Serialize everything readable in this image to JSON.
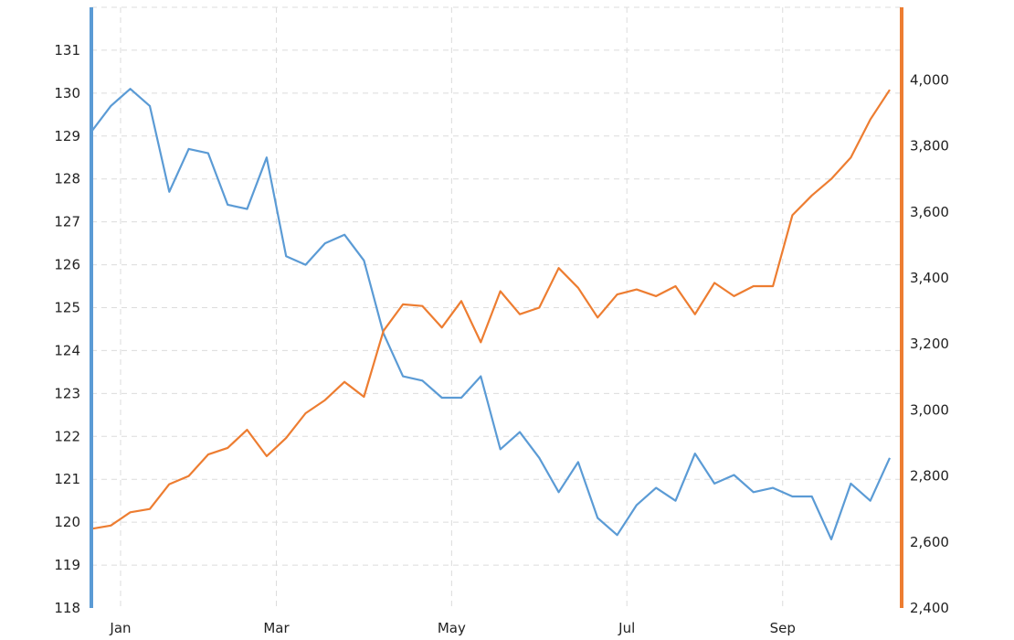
{
  "chart_data": {
    "type": "line",
    "title": "",
    "xlabel": "",
    "x_tick_labels": [
      "Jan",
      "Mar",
      "May",
      "Jul",
      "Sep"
    ],
    "x_tick_index": [
      1.5,
      9.5,
      18.5,
      27.5,
      35.5
    ],
    "y_left": {
      "lim": [
        118,
        132
      ],
      "ticks": [
        "118",
        "119",
        "120",
        "121",
        "122",
        "123",
        "124",
        "125",
        "126",
        "127",
        "128",
        "129",
        "130",
        "131"
      ],
      "color": "#5b9bd5"
    },
    "y_right": {
      "lim": [
        2400,
        4220
      ],
      "ticks": [
        "2,400",
        "2,600",
        "2,800",
        "3,000",
        "3,200",
        "3,400",
        "3,600",
        "3,800",
        "4,000"
      ],
      "color": "#ed7d31"
    },
    "grid": true,
    "series": [
      {
        "axis": "left",
        "color": "#5b9bd5",
        "values": [
          129.1,
          129.7,
          130.1,
          129.7,
          127.7,
          128.7,
          128.6,
          127.4,
          127.3,
          128.5,
          126.2,
          126.0,
          126.5,
          126.7,
          126.1,
          124.4,
          123.4,
          123.3,
          122.9,
          122.9,
          123.4,
          121.7,
          122.1,
          121.5,
          120.7,
          121.4,
          120.1,
          119.7,
          120.4,
          120.8,
          120.5,
          121.6,
          120.9,
          121.1,
          120.7,
          120.8,
          120.6,
          120.6,
          119.6,
          120.9,
          120.5,
          121.5
        ]
      },
      {
        "axis": "right",
        "color": "#ed7d31",
        "values": [
          2640,
          2650,
          2690,
          2700,
          2775,
          2800,
          2865,
          2885,
          2940,
          2860,
          2915,
          2990,
          3030,
          3085,
          3040,
          3240,
          3320,
          3315,
          3250,
          3330,
          3205,
          3360,
          3290,
          3310,
          3430,
          3370,
          3280,
          3350,
          3365,
          3345,
          3375,
          3290,
          3385,
          3345,
          3375,
          3375,
          3590,
          3650,
          3700,
          3765,
          3880,
          3970
        ]
      }
    ]
  }
}
